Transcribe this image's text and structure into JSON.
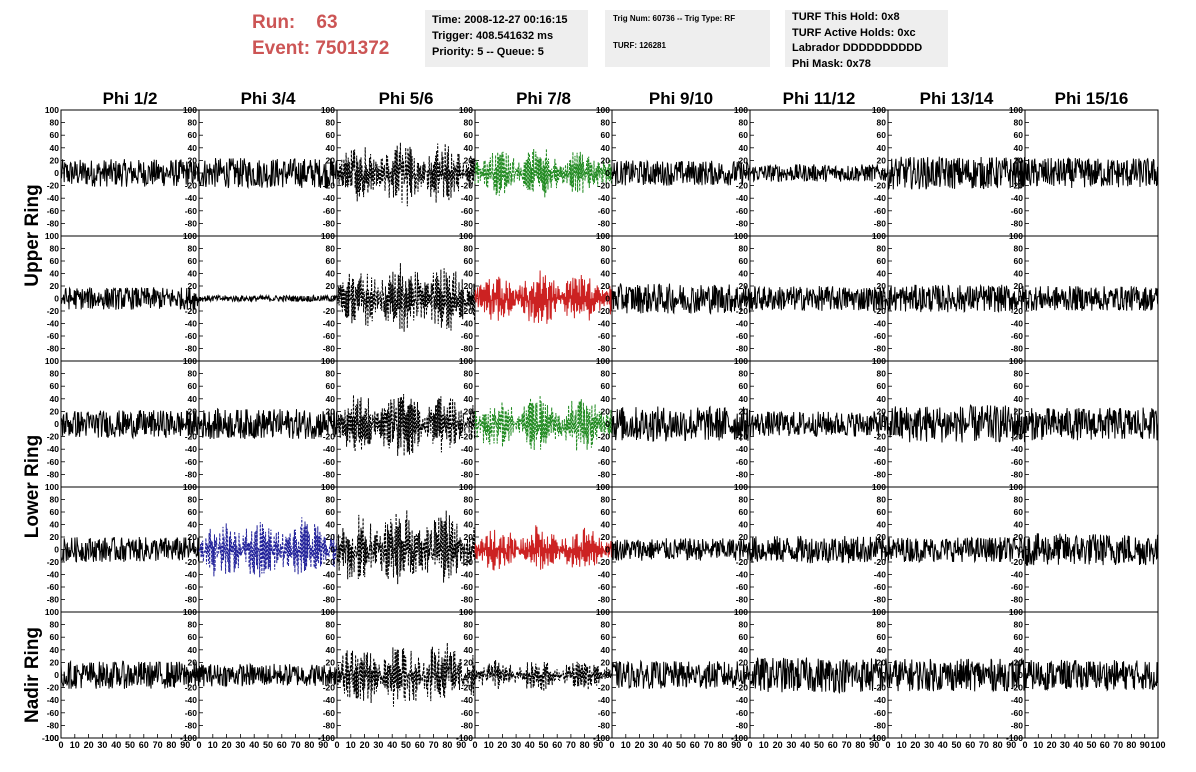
{
  "header": {
    "run_label": "Run:",
    "run_value": "63",
    "event_label": "Event:",
    "event_value": "7501372",
    "time": "Time: 2008-12-27 00:16:15",
    "trigger": "Trigger: 408.541632 ms",
    "priority": "Priority: 5 -- Queue: 5",
    "trig_num": "Trig Num: 60736 -- Trig Type: RF",
    "turf": "TURF: 126281",
    "turf_this_hold": "TURF This Hold: 0x8",
    "turf_active_holds": "TURF Active Holds: 0xc",
    "labrador": "Labrador DDDDDDDDDD",
    "phi_mask": "Phi Mask: 0x78"
  },
  "chart_data": {
    "type": "line",
    "columns": [
      "Phi 1/2",
      "Phi 3/4",
      "Phi 5/6",
      "Phi 7/8",
      "Phi 9/10",
      "Phi 11/12",
      "Phi 13/14",
      "Phi 15/16"
    ],
    "ring_labels": [
      "Upper Ring",
      "Lower Ring",
      "Nadir Ring"
    ],
    "ring_row_spans": [
      2,
      2,
      1
    ],
    "ylim": [
      -100,
      100
    ],
    "xlim": [
      0,
      100
    ],
    "yticks": [
      "100",
      "80",
      "60",
      "40",
      "20",
      "0",
      "-20",
      "-40",
      "-60",
      "-80",
      "-100"
    ],
    "xticks": [
      "0",
      "10",
      "20",
      "30",
      "40",
      "50",
      "60",
      "70",
      "80",
      "90",
      "100"
    ],
    "colors": {
      "solid": "#000000",
      "dashed": "#000000",
      "green": "#228b22",
      "red": "#cc2222",
      "blue": "#22229a"
    },
    "panels": [
      [
        {
          "style": "solid",
          "amp": 22,
          "packet": false
        },
        {
          "style": "solid",
          "amp": 24,
          "packet": false
        },
        {
          "style": "dashed",
          "color": "dashed",
          "amp": 55,
          "packet": true
        },
        {
          "style": "dashed",
          "color": "green",
          "amp": 45,
          "packet": true
        },
        {
          "style": "solid",
          "amp": 20,
          "packet": false
        },
        {
          "style": "solid",
          "amp": 14,
          "packet": false
        },
        {
          "style": "solid",
          "amp": 26,
          "packet": false
        },
        {
          "style": "solid",
          "amp": 24,
          "packet": false
        }
      ],
      [
        {
          "style": "solid",
          "amp": 18,
          "packet": false
        },
        {
          "style": "solid",
          "amp": 5,
          "packet": false
        },
        {
          "style": "dashed",
          "color": "dashed",
          "amp": 65,
          "packet": true
        },
        {
          "style": "solid",
          "color": "red",
          "amp": 45,
          "packet": true
        },
        {
          "style": "solid",
          "amp": 24,
          "packet": false
        },
        {
          "style": "solid",
          "amp": 20,
          "packet": false
        },
        {
          "style": "solid",
          "amp": 22,
          "packet": false
        },
        {
          "style": "solid",
          "amp": 20,
          "packet": false
        }
      ],
      [
        {
          "style": "solid",
          "amp": 22,
          "packet": false
        },
        {
          "style": "solid",
          "amp": 24,
          "packet": false
        },
        {
          "style": "dashed",
          "color": "dashed",
          "amp": 60,
          "packet": true
        },
        {
          "style": "dashed",
          "color": "green",
          "amp": 50,
          "packet": true
        },
        {
          "style": "solid",
          "amp": 28,
          "packet": false
        },
        {
          "style": "solid",
          "amp": 20,
          "packet": false
        },
        {
          "style": "solid",
          "amp": 30,
          "packet": false
        },
        {
          "style": "solid",
          "amp": 26,
          "packet": false
        }
      ],
      [
        {
          "style": "solid",
          "amp": 20,
          "packet": false
        },
        {
          "style": "dashed",
          "color": "blue",
          "amp": 55,
          "packet": true
        },
        {
          "style": "dashed",
          "color": "dashed",
          "amp": 70,
          "packet": true
        },
        {
          "style": "solid",
          "color": "red",
          "amp": 40,
          "packet": true
        },
        {
          "style": "solid",
          "amp": 18,
          "packet": false
        },
        {
          "style": "solid",
          "amp": 22,
          "packet": false
        },
        {
          "style": "solid",
          "amp": 20,
          "packet": false
        },
        {
          "style": "solid",
          "amp": 26,
          "packet": false
        }
      ],
      [
        {
          "style": "solid",
          "amp": 22,
          "packet": false
        },
        {
          "style": "solid",
          "amp": 18,
          "packet": false
        },
        {
          "style": "dashed",
          "color": "dashed",
          "amp": 60,
          "packet": true
        },
        {
          "style": "dashed",
          "color": "dashed",
          "amp": 28,
          "packet": true
        },
        {
          "style": "solid",
          "amp": 22,
          "packet": false
        },
        {
          "style": "solid",
          "amp": 28,
          "packet": false
        },
        {
          "style": "solid",
          "amp": 26,
          "packet": false
        },
        {
          "style": "solid",
          "amp": 24,
          "packet": false
        }
      ]
    ]
  }
}
